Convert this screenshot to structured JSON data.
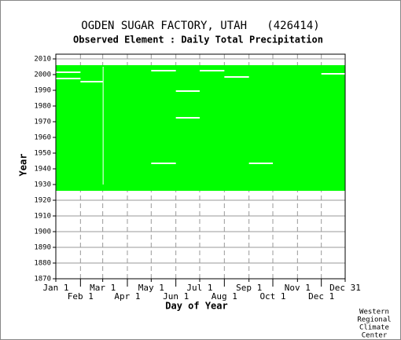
{
  "chart_data": {
    "type": "availability",
    "title": "OGDEN SUGAR FACTORY, UTAH   (426414)",
    "subtitle": "Observed Element : Daily Total Precipitation",
    "xlabel": "Day of Year",
    "ylabel": "Year",
    "xlim": [
      1,
      365
    ],
    "ylim": [
      1870,
      2010
    ],
    "xticks": [
      {
        "value": 1,
        "label": "Jan 1"
      },
      {
        "value": 32,
        "label": "Feb 1"
      },
      {
        "value": 60,
        "label": "Mar 1"
      },
      {
        "value": 91,
        "label": "Apr 1"
      },
      {
        "value": 121,
        "label": "May 1"
      },
      {
        "value": 152,
        "label": "Jun 1"
      },
      {
        "value": 182,
        "label": "Jul 1"
      },
      {
        "value": 213,
        "label": "Aug 1"
      },
      {
        "value": 244,
        "label": "Sep 1"
      },
      {
        "value": 274,
        "label": "Oct 1"
      },
      {
        "value": 305,
        "label": "Nov 1"
      },
      {
        "value": 335,
        "label": "Dec 1"
      },
      {
        "value": 365,
        "label": "Dec 31"
      }
    ],
    "yticks": [
      1870,
      1880,
      1890,
      1900,
      1910,
      1920,
      1930,
      1940,
      1950,
      1960,
      1970,
      1980,
      1990,
      2000,
      2010
    ],
    "grid": true,
    "color": "#00ff00",
    "coverage": {
      "start_year": 1926,
      "end_year": 2005
    },
    "gaps": [
      {
        "year_start": 2001,
        "year_end": 2001,
        "day_start": 1,
        "day_end": 32
      },
      {
        "year_start": 1997,
        "year_end": 1997,
        "day_start": 1,
        "day_end": 32
      },
      {
        "year_start": 1995,
        "year_end": 1995,
        "day_start": 32,
        "day_end": 60
      },
      {
        "year_start": 2002,
        "year_end": 2002,
        "day_start": 121,
        "day_end": 152
      },
      {
        "year_start": 2002,
        "year_end": 2002,
        "day_start": 182,
        "day_end": 213
      },
      {
        "year_start": 1998,
        "year_end": 1998,
        "day_start": 213,
        "day_end": 244
      },
      {
        "year_start": 2000,
        "year_end": 2000,
        "day_start": 335,
        "day_end": 365
      },
      {
        "year_start": 1989,
        "year_end": 1989,
        "day_start": 152,
        "day_end": 182
      },
      {
        "year_start": 1972,
        "year_end": 1972,
        "day_start": 152,
        "day_end": 182
      },
      {
        "year_start": 1943,
        "year_end": 1943,
        "day_start": 121,
        "day_end": 152
      },
      {
        "year_start": 1943,
        "year_end": 1943,
        "day_start": 244,
        "day_end": 274
      },
      {
        "year_start": 1930,
        "year_end": 2004,
        "day_start": 60,
        "day_end": 61
      }
    ]
  },
  "credit": [
    "Western",
    "Regional",
    "Climate",
    "Center"
  ]
}
